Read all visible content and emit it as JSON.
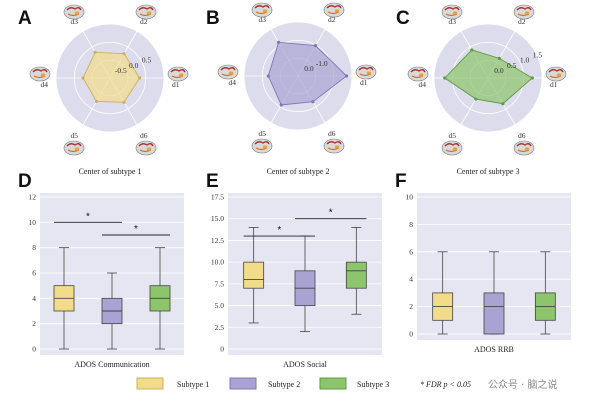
{
  "colors": {
    "subtype1": "#f2dc8a",
    "subtype1_stroke": "#c9b25b",
    "subtype2": "#a8a3d3",
    "subtype2_stroke": "#7f78b6",
    "subtype3": "#8cc56b",
    "subtype3_stroke": "#5f9a44",
    "panel_bg": "#e6e6f2",
    "radar_bg": "#dcdcec"
  },
  "radar_axes": [
    "d1",
    "d2",
    "d3",
    "d4",
    "d5",
    "d6"
  ],
  "radar_panels": [
    {
      "letter": "A",
      "caption": "Center of subtype 1",
      "ring_labels": [
        "-0.5",
        "0.0",
        "0.5"
      ],
      "values": [
        0.55,
        0.52,
        0.55,
        0.5,
        0.5,
        0.52
      ],
      "color_key": "subtype1"
    },
    {
      "letter": "B",
      "caption": "Center of subtype 2",
      "ring_labels": [
        "0.0",
        "-1.0"
      ],
      "values": [
        0.9,
        0.65,
        0.72,
        0.55,
        0.62,
        0.55
      ],
      "color_key": "subtype2"
    },
    {
      "letter": "C",
      "caption": "Center of subtype 3",
      "ring_labels": [
        "0.0",
        "0.5",
        "1.0",
        "1.5"
      ],
      "values": [
        0.82,
        0.42,
        0.6,
        0.8,
        0.45,
        0.55
      ],
      "color_key": "subtype3"
    }
  ],
  "chart_data": [
    {
      "type": "box",
      "letter": "D",
      "xlabel": "ADOS Communication",
      "ylim": [
        0,
        12
      ],
      "yticks": [
        0,
        2,
        4,
        6,
        8,
        10,
        12
      ],
      "boxes": [
        {
          "min": 0,
          "q1": 3,
          "median": 4,
          "q3": 5,
          "max": 8
        },
        {
          "min": 0,
          "q1": 2,
          "median": 3,
          "q3": 4,
          "max": 6
        },
        {
          "min": 0,
          "q1": 3,
          "median": 4,
          "q3": 5,
          "max": 8
        }
      ],
      "significance": [
        {
          "from": 0,
          "to": 1,
          "y": 10,
          "label": "*"
        },
        {
          "from": 1,
          "to": 2,
          "y": 9,
          "label": "*"
        }
      ]
    },
    {
      "type": "box",
      "letter": "E",
      "xlabel": "ADOS Social",
      "ylim": [
        0,
        17.5
      ],
      "yticks": [
        0,
        2.5,
        5.0,
        7.5,
        10.0,
        12.5,
        15.0,
        17.5
      ],
      "ytick_labels": [
        "0",
        "2.5",
        "5.0",
        "7.5",
        "10.0",
        "12.5",
        "15.0",
        "17.5"
      ],
      "boxes": [
        {
          "min": 3,
          "q1": 7,
          "median": 8,
          "q3": 10,
          "max": 14
        },
        {
          "min": 2,
          "q1": 5,
          "median": 7,
          "q3": 9,
          "max": 13
        },
        {
          "min": 4,
          "q1": 7,
          "median": 9,
          "q3": 10,
          "max": 14
        }
      ],
      "significance": [
        {
          "from": 0,
          "to": 1,
          "y": 13,
          "label": "*"
        },
        {
          "from": 1,
          "to": 2,
          "y": 15,
          "label": "*"
        }
      ]
    },
    {
      "type": "box",
      "letter": "F",
      "xlabel": "ADOS RRB",
      "ylim": [
        0,
        10
      ],
      "yticks": [
        0,
        2,
        4,
        6,
        8,
        10
      ],
      "boxes": [
        {
          "min": 0,
          "q1": 1,
          "median": 2,
          "q3": 3,
          "max": 6
        },
        {
          "min": 0,
          "q1": 0,
          "median": 2,
          "q3": 3,
          "max": 6
        },
        {
          "min": 0,
          "q1": 1,
          "median": 2,
          "q3": 3,
          "max": 6
        }
      ],
      "significance": []
    }
  ],
  "legend": [
    {
      "label": "Subtype 1",
      "color_key": "subtype1"
    },
    {
      "label": "Subtype 2",
      "color_key": "subtype2"
    },
    {
      "label": "Subtype 3",
      "color_key": "subtype3"
    }
  ],
  "footnote": "* FDR p < 0.05",
  "watermark": "公众号 · 脑之说"
}
